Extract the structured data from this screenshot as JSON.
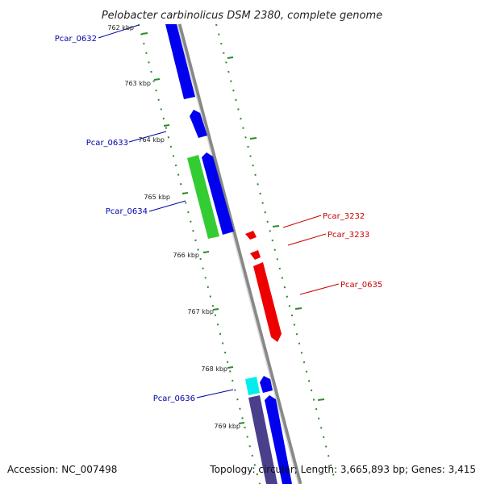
{
  "title": "Pelobacter carbinolicus DSM 2380, complete genome",
  "footer": {
    "accession": "Accession: NC_007498",
    "summary": "Topology: circular; Length: 3,665,893 bp; Genes: 3,415"
  },
  "colors": {
    "forward_cds": "#0000ee",
    "reverse_cds": "#ee0000",
    "green_feature": "#33cc33",
    "cyan_feature": "#00eeee",
    "purple_feature": "#4a3f8a",
    "backbone": "#888888",
    "tick": "#2a8a2a",
    "blue_label": "#0000aa",
    "red_label": "#cc0000"
  },
  "ticks": [
    {
      "label": "762 kbp"
    },
    {
      "label": "763 kbp"
    },
    {
      "label": "764 kbp"
    },
    {
      "label": "765 kbp"
    },
    {
      "label": "766 kbp"
    },
    {
      "label": "767 kbp"
    },
    {
      "label": "768 kbp"
    },
    {
      "label": "769 kbp"
    }
  ],
  "gene_labels": [
    {
      "text": "Pcar_0632",
      "color": "#0000aa"
    },
    {
      "text": "Pcar_0633",
      "color": "#0000aa"
    },
    {
      "text": "Pcar_0634",
      "color": "#0000aa"
    },
    {
      "text": "Pcar_0636",
      "color": "#0000aa"
    },
    {
      "text": "Pcar_3232",
      "color": "#cc0000"
    },
    {
      "text": "Pcar_3233",
      "color": "#cc0000"
    },
    {
      "text": "Pcar_0635",
      "color": "#cc0000"
    }
  ]
}
